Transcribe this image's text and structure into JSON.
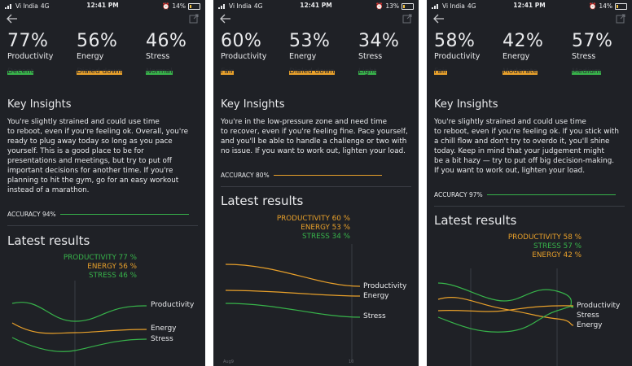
{
  "screens": [
    {
      "carrier": "Vi India",
      "network": "4G",
      "time": "12:41 PM",
      "battery": "14%",
      "metrics": [
        {
          "value": "77%",
          "label": "Productivity",
          "status": "Decent",
          "color": "green"
        },
        {
          "value": "56%",
          "label": "Energy",
          "status": "Dialed down",
          "color": "orange"
        },
        {
          "value": "46%",
          "label": "Stress",
          "status": "Normal",
          "color": "green"
        }
      ],
      "insights_title": "Key Insights",
      "insights_lines": [
        "You're slightly strained and could use time",
        "to reboot, even if you're feeling ok. Overall, you're",
        "ready to plug away today so long as you pace",
        "yourself. This is a good place to be for",
        "presentations and meetings, but try to put off",
        "important decisions for another time. If you're",
        "planning to hit the gym, go for an easy workout",
        "instead of a marathon."
      ],
      "accuracy": "ACCURACY 94%",
      "accuracy_color": "#37b34a",
      "latest_title": "Latest results",
      "legend": [
        {
          "text": "PRODUCTIVITY 77 %",
          "color": "#37b34a"
        },
        {
          "text": "ENERGY 56 %",
          "color": "#e8a02a"
        },
        {
          "text": "STRESS 46 %",
          "color": "#37b34a"
        }
      ],
      "chart_labels": [
        "Productivity",
        "Energy",
        "Stress"
      ],
      "axis_labels": []
    },
    {
      "carrier": "Vi India",
      "network": "4G",
      "time": "12:41 PM",
      "battery": "13%",
      "metrics": [
        {
          "value": "60%",
          "label": "Productivity",
          "status": "Fair",
          "color": "orange"
        },
        {
          "value": "53%",
          "label": "Energy",
          "status": "Dialed down",
          "color": "orange"
        },
        {
          "value": "34%",
          "label": "Stress",
          "status": "Light",
          "color": "green"
        }
      ],
      "insights_title": "Key Insights",
      "insights_lines": [
        "You're in the low-pressure zone and need time",
        "to recover, even if you're feeling fine. Pace yourself,",
        "and you'll be able to handle a challenge or two with",
        "no issue. If you want to work out, lighten your load."
      ],
      "accuracy": "ACCURACY 80%",
      "accuracy_color": "#e8a02a",
      "latest_title": "Latest results",
      "legend": [
        {
          "text": "PRODUCTIVITY 60 %",
          "color": "#e8a02a"
        },
        {
          "text": "ENERGY 53 %",
          "color": "#e8a02a"
        },
        {
          "text": "STRESS 34 %",
          "color": "#37b34a"
        }
      ],
      "chart_labels": [
        "Productivity",
        "Energy",
        "Stress"
      ],
      "axis_labels": [
        "Aug9",
        "10"
      ]
    },
    {
      "carrier": "Vi India",
      "network": "4G",
      "time": "12:41 PM",
      "battery": "14%",
      "metrics": [
        {
          "value": "58%",
          "label": "Productivity",
          "status": "Fair",
          "color": "orange"
        },
        {
          "value": "42%",
          "label": "Energy",
          "status": "Moderate",
          "color": "orange"
        },
        {
          "value": "57%",
          "label": "Stress",
          "status": "Medium",
          "color": "green"
        }
      ],
      "insights_title": "Key Insights",
      "insights_lines": [
        "You're slightly strained and could use time",
        "to reboot, even if you're feeling ok. If you stick with",
        "a chill flow and don't try to overdo it, you'll shine",
        "today. Keep in mind that your judgement might",
        "be a bit hazy — try to put off big decision-making.",
        "If you want to work out, lighten your load."
      ],
      "accuracy": "ACCURACY 97%",
      "accuracy_color": "#37b34a",
      "latest_title": "Latest results",
      "legend": [
        {
          "text": "PRODUCTIVITY 58 %",
          "color": "#e8a02a"
        },
        {
          "text": "STRESS 57 %",
          "color": "#37b34a"
        },
        {
          "text": "ENERGY 42 %",
          "color": "#e8a02a"
        }
      ],
      "chart_labels": [
        "Productivity",
        "Stress",
        "Energy"
      ],
      "axis_labels": []
    }
  ]
}
